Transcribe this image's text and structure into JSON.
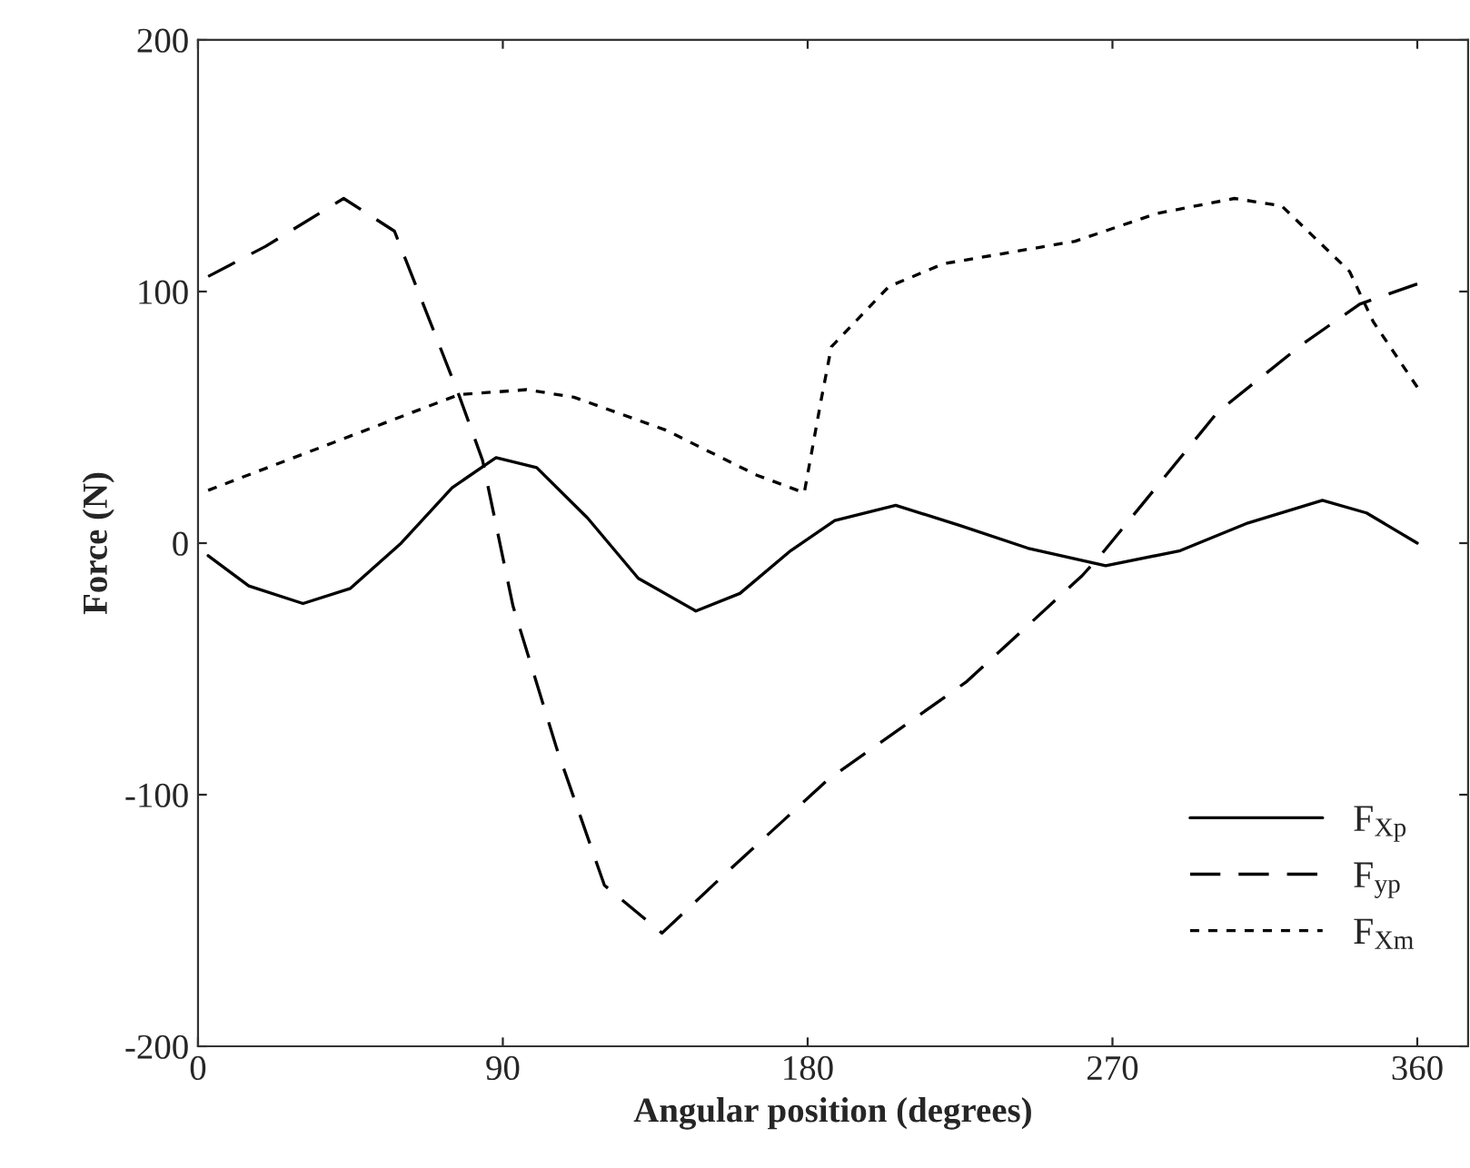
{
  "chart_data": {
    "type": "line",
    "xlabel": "Angular position (degrees)",
    "ylabel": "Force (N)",
    "xlim": [
      0,
      375
    ],
    "ylim": [
      -200,
      200
    ],
    "xticks": [
      0,
      90,
      180,
      270,
      360
    ],
    "yticks": [
      -200,
      -100,
      0,
      100,
      200
    ],
    "grid": false,
    "legend": "bottom right",
    "marker": "none",
    "series": [
      {
        "name": "F$_{Xp}$",
        "color": "#000000",
        "line_style": "solid",
        "x": [
          3,
          15,
          31,
          45,
          60,
          75,
          88,
          100,
          115,
          130,
          147,
          160,
          175,
          188,
          206,
          225,
          245,
          268,
          290,
          310,
          332,
          345,
          360
        ],
        "values": [
          -5,
          -17,
          -24,
          -18,
          0,
          22,
          34,
          30,
          10,
          -14,
          -27,
          -20,
          -3,
          9,
          15,
          7,
          -2,
          -9,
          -3,
          8,
          17,
          12,
          0
        ]
      },
      {
        "name": "F$_{yp}$",
        "color": "#000000",
        "line_style": "dashed",
        "x": [
          3,
          20,
          43,
          58,
          77,
          84,
          93,
          106,
          120,
          137,
          156,
          186,
          227,
          261,
          267,
          301,
          326,
          343,
          360
        ],
        "values": [
          106,
          118,
          137,
          124,
          59,
          33,
          -25,
          -82,
          -136,
          -155,
          -131,
          -94,
          -55,
          -13,
          -4,
          52,
          79,
          95,
          103
        ]
      },
      {
        "name": "F$_{Xm}$",
        "color": "#000000",
        "line_style": "dotted",
        "x": [
          3,
          40,
          77,
          97,
          111,
          138,
          165,
          179,
          184,
          187,
          204,
          220,
          259,
          283,
          306,
          320,
          340,
          347,
          360
        ],
        "values": [
          21,
          40,
          59,
          61,
          58,
          45,
          27,
          20,
          57,
          78,
          102,
          111,
          120,
          131,
          137,
          134,
          108,
          88,
          62
        ]
      }
    ]
  }
}
